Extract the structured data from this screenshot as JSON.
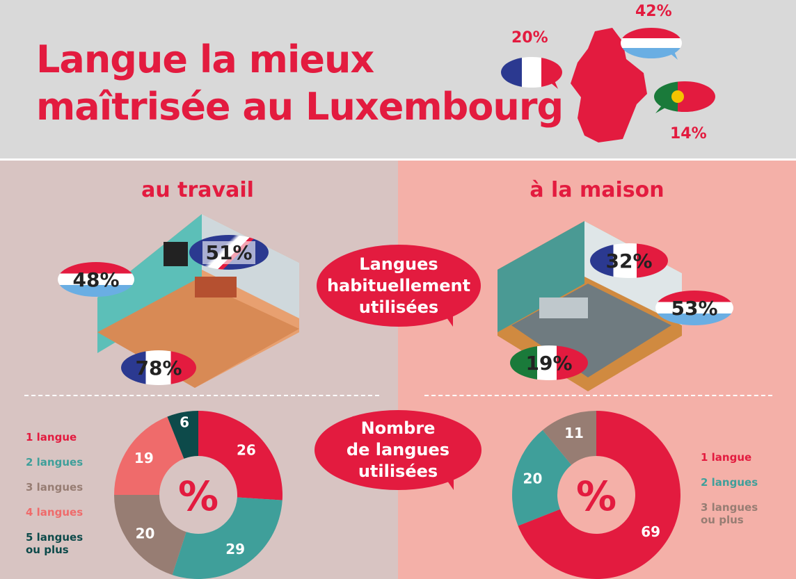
{
  "title": [
    "Langue la mieux",
    "maîtrisée au Luxembourg"
  ],
  "top_stats": {
    "french": "20%",
    "luxembourgish": "42%",
    "portuguese": "14%"
  },
  "work": {
    "heading": "au travail",
    "luxembourgish": "48%",
    "english": "51%",
    "french": "78%"
  },
  "home": {
    "heading": "à la maison",
    "french": "32%",
    "luxembourgish": "53%",
    "portuguese": "19%"
  },
  "center_bubbles": {
    "usual": [
      "Langues",
      "habituellement",
      "utilisées"
    ],
    "count": [
      "Nombre",
      "de langues",
      "utilisées"
    ]
  },
  "colors": {
    "red": "#e31b3f",
    "teal": "#3f9f9a",
    "brown": "#977d73",
    "salmon": "#ef6b6b",
    "darkteal": "#0d4a4a"
  },
  "chart_data": [
    {
      "type": "pie",
      "title": "au travail",
      "center_label": "%",
      "categories": [
        "1 langue",
        "2 langues",
        "3 langues",
        "4 langues",
        "5 langues ou plus"
      ],
      "values": [
        26,
        29,
        20,
        19,
        6
      ],
      "colors": [
        "#e31b3f",
        "#3f9f9a",
        "#977d73",
        "#ef6b6b",
        "#0d4a4a"
      ],
      "legend": "left"
    },
    {
      "type": "pie",
      "title": "à la maison",
      "center_label": "%",
      "categories": [
        "1 langue",
        "2 langues",
        "3 langues ou plus"
      ],
      "values": [
        69,
        20,
        11
      ],
      "colors": [
        "#e31b3f",
        "#3f9f9a",
        "#977d73"
      ],
      "legend": "right"
    }
  ]
}
